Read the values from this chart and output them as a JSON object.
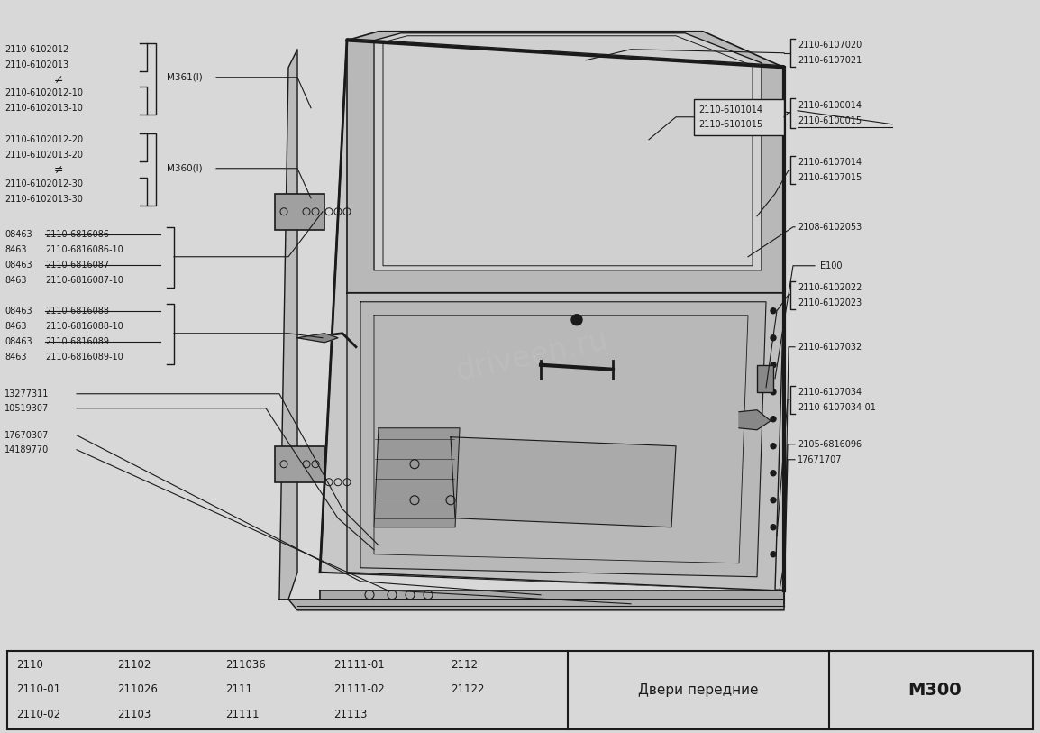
{
  "bg_color": "#d8d8d8",
  "fs": 7.0,
  "bottom_table": {
    "col1": [
      "2110",
      "2110-01",
      "2110-02"
    ],
    "col2": [
      "21102",
      "211026",
      "21103"
    ],
    "col3": [
      "211036",
      "2111",
      "21111"
    ],
    "col4": [
      "21111-01",
      "21111-02",
      "21113"
    ],
    "col5": [
      "2112",
      "21122",
      ""
    ],
    "title": "Двери передние",
    "code": "M300"
  }
}
